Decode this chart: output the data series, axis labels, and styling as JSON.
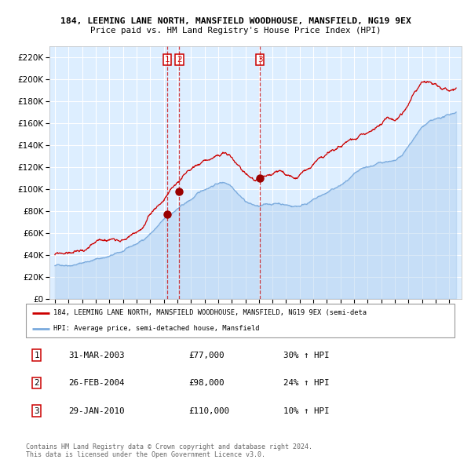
{
  "title1": "184, LEEMING LANE NORTH, MANSFIELD WOODHOUSE, MANSFIELD, NG19 9EX",
  "title2": "Price paid vs. HM Land Registry's House Price Index (HPI)",
  "plot_bg_color": "#ddeeff",
  "grid_color": "#ffffff",
  "red_line_color": "#cc0000",
  "blue_line_color": "#7aaadd",
  "blue_fill_color": "#aaccee",
  "sale_marker_color": "#990000",
  "vline_color": "#cc0000",
  "legend_label_red": "184, LEEMING LANE NORTH, MANSFIELD WOODHOUSE, MANSFIELD, NG19 9EX (semi-deta",
  "legend_label_blue": "HPI: Average price, semi-detached house, Mansfield",
  "table_rows": [
    [
      "1",
      "31-MAR-2003",
      "£77,000",
      "30% ↑ HPI"
    ],
    [
      "2",
      "26-FEB-2004",
      "£98,000",
      "24% ↑ HPI"
    ],
    [
      "3",
      "29-JAN-2010",
      "£110,000",
      "10% ↑ HPI"
    ]
  ],
  "footer": "Contains HM Land Registry data © Crown copyright and database right 2024.\nThis data is licensed under the Open Government Licence v3.0.",
  "ylim": [
    0,
    230000
  ],
  "xlim_start": 1994.6,
  "xlim_end": 2024.9,
  "yticks": [
    0,
    20000,
    40000,
    60000,
    80000,
    100000,
    120000,
    140000,
    160000,
    180000,
    200000,
    220000
  ],
  "ytick_labels": [
    "£0",
    "£20K",
    "£40K",
    "£60K",
    "£80K",
    "£100K",
    "£120K",
    "£140K",
    "£160K",
    "£180K",
    "£200K",
    "£220K"
  ],
  "sale1_x": 2003.25,
  "sale1_y": 77000,
  "sale2_x": 2004.15,
  "sale2_y": 98000,
  "sale3_x": 2010.08,
  "sale3_y": 110000,
  "hpi_years": [
    1995,
    1995.5,
    1996,
    1996.5,
    1997,
    1997.5,
    1998,
    1998.5,
    1999,
    1999.5,
    2000,
    2000.5,
    2001,
    2001.5,
    2002,
    2002.5,
    2003,
    2003.5,
    2004,
    2004.5,
    2005,
    2005.5,
    2006,
    2006.5,
    2007,
    2007.5,
    2008,
    2008.5,
    2009,
    2009.5,
    2010,
    2010.5,
    2011,
    2011.5,
    2012,
    2012.5,
    2013,
    2013.5,
    2014,
    2014.5,
    2015,
    2015.5,
    2016,
    2016.5,
    2017,
    2017.5,
    2018,
    2018.5,
    2019,
    2019.5,
    2020,
    2020.5,
    2021,
    2021.5,
    2022,
    2022.5,
    2023,
    2023.5,
    2024,
    2024.5
  ],
  "hpi_prices": [
    30000,
    31000,
    32000,
    33500,
    35000,
    37000,
    39000,
    40500,
    42000,
    44000,
    46000,
    49000,
    52000,
    56000,
    62000,
    68000,
    74000,
    79000,
    84000,
    88000,
    92000,
    97000,
    101000,
    105000,
    108000,
    109000,
    107000,
    101000,
    95000,
    92000,
    90000,
    91000,
    92000,
    93000,
    92000,
    91000,
    92000,
    95000,
    98000,
    101000,
    104000,
    107000,
    110000,
    114000,
    118000,
    121000,
    123000,
    125000,
    127000,
    129000,
    128000,
    132000,
    140000,
    150000,
    158000,
    162000,
    163000,
    165000,
    167000,
    170000
  ],
  "prop_years": [
    1995,
    1995.5,
    1996,
    1996.5,
    1997,
    1997.5,
    1998,
    1998.5,
    1999,
    1999.5,
    2000,
    2000.5,
    2001,
    2001.5,
    2002,
    2002.5,
    2003,
    2003.5,
    2004,
    2004.5,
    2005,
    2005.5,
    2006,
    2006.5,
    2007,
    2007.5,
    2008,
    2008.5,
    2009,
    2009.5,
    2010,
    2010.5,
    2011,
    2011.5,
    2012,
    2012.5,
    2013,
    2013.5,
    2014,
    2014.5,
    2015,
    2015.5,
    2016,
    2016.5,
    2017,
    2017.5,
    2018,
    2018.5,
    2019,
    2019.5,
    2020,
    2020.5,
    2021,
    2021.5,
    2022,
    2022.5,
    2023,
    2023.5,
    2024,
    2024.5
  ],
  "prop_prices": [
    40000,
    41000,
    42000,
    43000,
    44500,
    46500,
    48500,
    50000,
    52000,
    54000,
    56000,
    59000,
    63000,
    68000,
    76000,
    85000,
    92000,
    100000,
    107000,
    114000,
    119000,
    124000,
    128000,
    131000,
    133000,
    134000,
    130000,
    122000,
    116000,
    113000,
    111000,
    112000,
    113000,
    115000,
    113000,
    112000,
    113000,
    117000,
    121000,
    125000,
    129000,
    133000,
    137000,
    142000,
    147000,
    151000,
    154000,
    157000,
    160000,
    163000,
    161000,
    167000,
    177000,
    190000,
    198000,
    200000,
    195000,
    190000,
    188000,
    192000
  ]
}
